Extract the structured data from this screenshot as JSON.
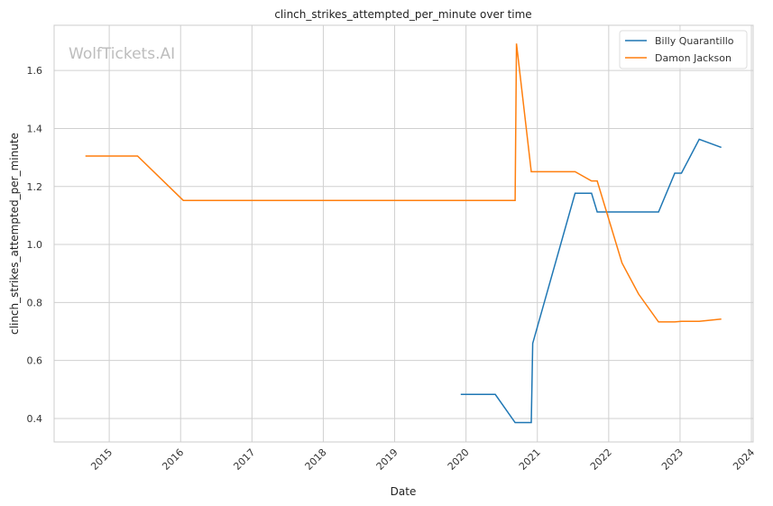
{
  "chart_data": {
    "type": "line",
    "title": "clinch_strikes_attempted_per_minute over time",
    "xlabel": "Date",
    "ylabel": "clinch_strikes_attempted_per_minute",
    "watermark": "WolfTickets.AI",
    "xlim": [
      "2014-03-25",
      "2024-01-10"
    ],
    "ylim": [
      0.319,
      1.756
    ],
    "x_ticks": [
      "2015",
      "2016",
      "2017",
      "2018",
      "2019",
      "2020",
      "2021",
      "2022",
      "2023",
      "2024"
    ],
    "y_ticks": [
      "0.4",
      "0.6",
      "0.8",
      "1.0",
      "1.2",
      "1.4",
      "1.6"
    ],
    "grid": true,
    "legend_position": "top-right",
    "series": [
      {
        "name": "Billy Quarantillo",
        "color": "#1f77b4",
        "x": [
          "2019-12-05",
          "2020-05-30",
          "2020-09-09",
          "2020-12-01",
          "2020-12-08",
          "2021-07-13",
          "2021-10-05",
          "2021-11-03",
          "2022-09-13",
          "2022-12-05",
          "2023-01-08",
          "2023-04-09",
          "2023-07-31"
        ],
        "y": [
          0.483,
          0.483,
          0.386,
          0.386,
          0.659,
          1.177,
          1.177,
          1.112,
          1.112,
          1.246,
          1.246,
          1.363,
          1.335
        ]
      },
      {
        "name": "Damon Jackson",
        "color": "#ff7f0e",
        "x": [
          "2014-09-01",
          "2015-05-26",
          "2016-01-15",
          "2020-09-09",
          "2020-09-16",
          "2020-12-01",
          "2021-07-13",
          "2021-10-05",
          "2021-11-03",
          "2022-03-10",
          "2022-06-03",
          "2022-09-13",
          "2022-12-05",
          "2023-01-08",
          "2023-04-09",
          "2023-07-31"
        ],
        "y": [
          1.305,
          1.305,
          1.152,
          1.152,
          1.693,
          1.251,
          1.251,
          1.219,
          1.219,
          0.936,
          0.829,
          0.733,
          0.733,
          0.735,
          0.735,
          0.743
        ]
      }
    ]
  }
}
